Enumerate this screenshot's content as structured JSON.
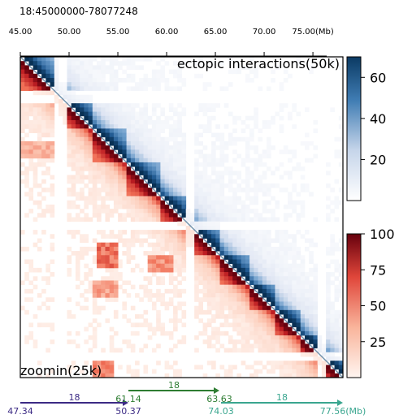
{
  "chart_data": {
    "type": "heatmap",
    "title": "18:45000000-78077248",
    "top_axis": {
      "ticks": [
        {
          "label": "45.00",
          "mb": 45.0
        },
        {
          "label": "50.00",
          "mb": 50.0
        },
        {
          "label": "55.00",
          "mb": 55.0
        },
        {
          "label": "60.00",
          "mb": 60.0
        },
        {
          "label": "65.00",
          "mb": 65.0
        },
        {
          "label": "70.00",
          "mb": 70.0
        },
        {
          "label": "75.00(Mb)",
          "mb": 75.0
        }
      ],
      "range_mb": [
        45.0,
        78.077248
      ]
    },
    "upper_label": "ectopic interactions(50k)",
    "lower_label": "zoomin(25k)",
    "colorbars": [
      {
        "name": "upper",
        "cmap": "white-to-blue",
        "ticks": [
          "20",
          "40",
          "60"
        ],
        "tick_values": [
          20,
          40,
          60
        ],
        "range": [
          0,
          70
        ]
      },
      {
        "name": "lower",
        "cmap": "white-to-red",
        "ticks": [
          "25",
          "50",
          "75",
          "100"
        ],
        "tick_values": [
          25,
          50,
          75,
          100
        ],
        "range": [
          0,
          100
        ]
      }
    ],
    "bottom_track": {
      "segments": [
        {
          "chrom": "18",
          "start_label": "47.34",
          "end_label": "50.37",
          "color": "#3b2a84",
          "row": 2
        },
        {
          "chrom": "18",
          "start_label": "61.14",
          "end_label": "63.63",
          "color": "#2e7d32",
          "row": 1
        },
        {
          "chrom": "18",
          "start_label": "74.03",
          "end_label": "77.56(Mb)",
          "color": "#3aa68f",
          "row": 2
        }
      ]
    }
  }
}
